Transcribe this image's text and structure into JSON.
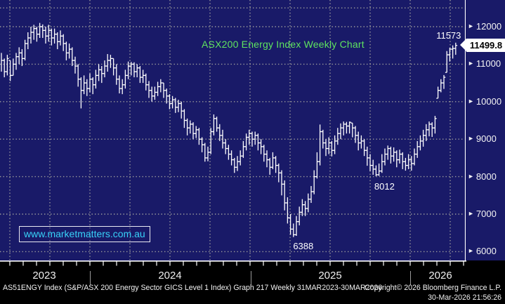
{
  "title": {
    "text": "ASX200 Energy Index Weekly Chart",
    "color": "#5fe45f"
  },
  "watermark": {
    "text": "www.marketmatters.com.au",
    "color": "#38d2f8"
  },
  "price_box": {
    "value": "11499.8"
  },
  "annotations": {
    "peak": "11573",
    "pullback_low": "8012",
    "major_low": "6388"
  },
  "x_axis": {
    "years": [
      "2023",
      "2024",
      "2025",
      "2026"
    ]
  },
  "footer": {
    "left": "AS51ENGY Index (S&P/ASX 200 Energy Sector GICS Level 1 Index) Graph 217 Weekly 31MAR2023-30MAR2026",
    "copyright": "Copyright© 2026 Bloomberg Finance L.P.",
    "timestamp": "30-Mar-2026 21:56:26"
  },
  "colors": {
    "background": "#191a68",
    "grid": "#9c9c9c",
    "bars": "#ffffff",
    "axis": "#ffffff",
    "footer_bg": "#000000"
  },
  "chart_data": {
    "type": "bar",
    "subtype": "weekly-ohlc-bars",
    "title": "ASX200 Energy Index Weekly Chart",
    "xlabel": "",
    "ylabel": "",
    "x_range": [
      "31MAR2023",
      "30MAR2026"
    ],
    "ylim": [
      5800,
      12500
    ],
    "grid": "dotted",
    "y_axis_labels": [
      12000,
      11000,
      10000,
      9000,
      8000,
      7000,
      6000
    ],
    "y_minor_ticks": [
      12500,
      11500,
      10500,
      9500,
      8500,
      7500,
      6500
    ],
    "y_gridlines": [
      12500,
      12000,
      11000,
      10000,
      9000,
      8000,
      7000,
      6000
    ],
    "last_price": 11499.8,
    "labeled_points": {
      "high": 11573,
      "low": 6388,
      "secondary_low": 8012
    },
    "bars_format": [
      "high",
      "low",
      "close"
    ],
    "bars": [
      [
        11300,
        10800,
        11100
      ],
      [
        11150,
        10650,
        10800
      ],
      [
        11250,
        10700,
        11150
      ],
      [
        11100,
        10550,
        10700
      ],
      [
        11150,
        10700,
        11000
      ],
      [
        11300,
        10850,
        11200
      ],
      [
        11450,
        11000,
        11300
      ],
      [
        11400,
        10950,
        11150
      ],
      [
        11650,
        11100,
        11550
      ],
      [
        11850,
        11400,
        11700
      ],
      [
        12000,
        11550,
        11850
      ],
      [
        12050,
        11650,
        11950
      ],
      [
        12000,
        11600,
        11800
      ],
      [
        12100,
        11700,
        12000
      ],
      [
        12060,
        11700,
        11900
      ],
      [
        12000,
        11550,
        11750
      ],
      [
        12050,
        11600,
        11900
      ],
      [
        11950,
        11500,
        11700
      ],
      [
        11950,
        11550,
        11800
      ],
      [
        11850,
        11400,
        11600
      ],
      [
        11900,
        11500,
        11750
      ],
      [
        11800,
        11350,
        11550
      ],
      [
        11600,
        11100,
        11300
      ],
      [
        11550,
        11150,
        11400
      ],
      [
        11450,
        10950,
        11100
      ],
      [
        11200,
        10750,
        10950
      ],
      [
        11000,
        10400,
        10600
      ],
      [
        10650,
        9820,
        10300
      ],
      [
        10700,
        10200,
        10500
      ],
      [
        10600,
        10150,
        10350
      ],
      [
        10750,
        10250,
        10600
      ],
      [
        10650,
        10200,
        10450
      ],
      [
        10850,
        10350,
        10700
      ],
      [
        11000,
        10550,
        10850
      ],
      [
        10950,
        10500,
        10750
      ],
      [
        11100,
        10650,
        10950
      ],
      [
        11270,
        10800,
        11100
      ],
      [
        11250,
        10900,
        11150
      ],
      [
        11150,
        10700,
        10900
      ],
      [
        11000,
        10450,
        10600
      ],
      [
        10700,
        10220,
        10350
      ],
      [
        10600,
        10200,
        10450
      ],
      [
        10850,
        10350,
        10700
      ],
      [
        11070,
        10600,
        10950
      ],
      [
        11060,
        10700,
        11000
      ],
      [
        11050,
        10650,
        10800
      ],
      [
        11000,
        10650,
        10900
      ],
      [
        10950,
        10500,
        10650
      ],
      [
        10850,
        10500,
        10700
      ],
      [
        10750,
        10300,
        10450
      ],
      [
        10550,
        10100,
        10300
      ],
      [
        10400,
        10000,
        10150
      ],
      [
        10400,
        10050,
        10250
      ],
      [
        10530,
        10150,
        10400
      ],
      [
        10600,
        10250,
        10500
      ],
      [
        10500,
        10100,
        10300
      ],
      [
        10350,
        9950,
        10150
      ],
      [
        10200,
        9800,
        9950
      ],
      [
        10150,
        9820,
        10050
      ],
      [
        10100,
        9700,
        9850
      ],
      [
        10050,
        9720,
        9950
      ],
      [
        10000,
        9550,
        9750
      ],
      [
        9800,
        9300,
        9500
      ],
      [
        9550,
        9100,
        9300
      ],
      [
        9500,
        9150,
        9400
      ],
      [
        9450,
        9000,
        9150
      ],
      [
        9350,
        9030,
        9250
      ],
      [
        9300,
        8850,
        9000
      ],
      [
        9050,
        8650,
        8850
      ],
      [
        8900,
        8400,
        8500
      ],
      [
        8800,
        8410,
        8650
      ],
      [
        9300,
        8600,
        9200
      ],
      [
        9660,
        9100,
        9550
      ],
      [
        9600,
        9200,
        9300
      ],
      [
        9400,
        8950,
        9100
      ],
      [
        9250,
        8750,
        8900
      ],
      [
        9000,
        8600,
        8750
      ],
      [
        8850,
        8450,
        8600
      ],
      [
        8700,
        8300,
        8450
      ],
      [
        8500,
        8100,
        8250
      ],
      [
        8550,
        8150,
        8400
      ],
      [
        8700,
        8300,
        8550
      ],
      [
        8950,
        8500,
        8800
      ],
      [
        9150,
        8700,
        9050
      ],
      [
        9250,
        8850,
        9150
      ],
      [
        9200,
        8800,
        9000
      ],
      [
        9200,
        8850,
        9100
      ],
      [
        9150,
        8700,
        8900
      ],
      [
        9000,
        8600,
        8800
      ],
      [
        8850,
        8400,
        8600
      ],
      [
        8700,
        8250,
        8450
      ],
      [
        8500,
        8050,
        8250
      ],
      [
        8650,
        8200,
        8500
      ],
      [
        8550,
        8100,
        8300
      ],
      [
        8350,
        7850,
        8100
      ],
      [
        8170,
        7500,
        7800
      ],
      [
        7900,
        7100,
        7300
      ],
      [
        7450,
        6750,
        6900
      ],
      [
        7000,
        6450,
        6600
      ],
      [
        6750,
        6388,
        6450
      ],
      [
        6950,
        6420,
        6800
      ],
      [
        7200,
        6700,
        7050
      ],
      [
        7400,
        6950,
        7250
      ],
      [
        7350,
        6950,
        7150
      ],
      [
        7550,
        7050,
        7400
      ],
      [
        7750,
        7300,
        7600
      ],
      [
        8170,
        7530,
        8000
      ],
      [
        8650,
        7950,
        8400
      ],
      [
        9390,
        8300,
        9200
      ],
      [
        9250,
        8750,
        8900
      ],
      [
        9000,
        8550,
        8750
      ],
      [
        9050,
        8600,
        8900
      ],
      [
        8950,
        8540,
        8700
      ],
      [
        9100,
        8600,
        8950
      ],
      [
        9300,
        8850,
        9150
      ],
      [
        9420,
        9000,
        9300
      ],
      [
        9470,
        9100,
        9400
      ],
      [
        9460,
        9150,
        9350
      ],
      [
        9470,
        9150,
        9450
      ],
      [
        9430,
        9050,
        9300
      ],
      [
        9350,
        8900,
        9100
      ],
      [
        9200,
        8700,
        8900
      ],
      [
        9100,
        8750,
        8950
      ],
      [
        9000,
        8550,
        8700
      ],
      [
        8800,
        8290,
        8500
      ],
      [
        8600,
        8150,
        8300
      ],
      [
        8450,
        8050,
        8200
      ],
      [
        8300,
        8012,
        8050
      ],
      [
        8350,
        8020,
        8150
      ],
      [
        8600,
        8100,
        8400
      ],
      [
        8750,
        8300,
        8600
      ],
      [
        8830,
        8450,
        8750
      ],
      [
        8800,
        8350,
        8550
      ],
      [
        8780,
        8400,
        8650
      ],
      [
        8700,
        8250,
        8450
      ],
      [
        8720,
        8350,
        8600
      ],
      [
        8650,
        8200,
        8400
      ],
      [
        8500,
        8160,
        8300
      ],
      [
        8600,
        8200,
        8450
      ],
      [
        8550,
        8160,
        8350
      ],
      [
        8750,
        8300,
        8600
      ],
      [
        8950,
        8500,
        8800
      ],
      [
        9100,
        8700,
        8950
      ],
      [
        9250,
        8800,
        9100
      ],
      [
        9400,
        8950,
        9250
      ],
      [
        9470,
        9075,
        9400
      ],
      [
        9450,
        9060,
        9300
      ],
      [
        9620,
        9150,
        9550
      ],
      [
        10400,
        10090,
        10300
      ],
      [
        10600,
        10250,
        10500
      ],
      [
        10710,
        10340,
        10650
      ],
      [
        11350,
        10780,
        11250
      ],
      [
        11440,
        11070,
        11400
      ],
      [
        11500,
        11150,
        11420
      ],
      [
        11573,
        11250,
        11499.8
      ]
    ]
  }
}
